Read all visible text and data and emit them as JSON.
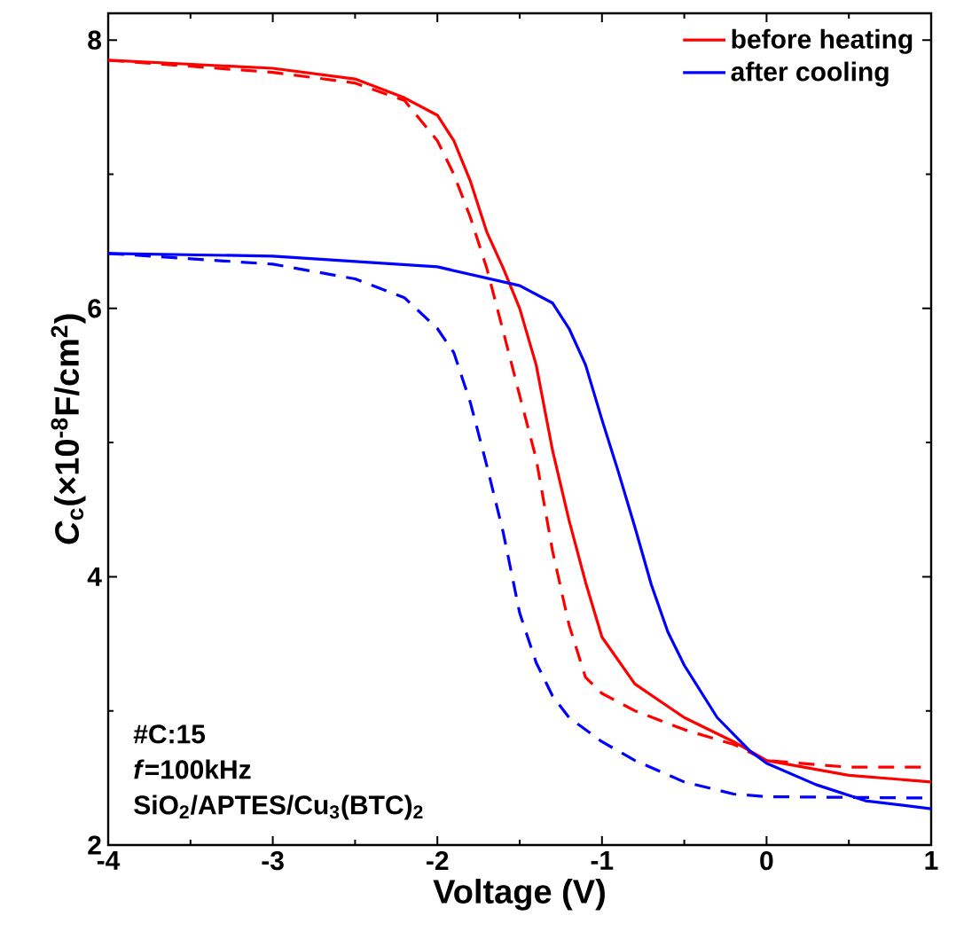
{
  "chart_data": {
    "type": "line",
    "xlabel": "Voltage (V)",
    "ylabel": "*C*$_{c}$(×10$^{-8}$F/cm$^{2}$)",
    "xlim": [
      -4,
      1
    ],
    "ylim": [
      2,
      8.2
    ],
    "xticks": [
      -4,
      -3,
      -2,
      -1,
      0,
      1
    ],
    "yticks": [
      2,
      4,
      6,
      8
    ],
    "grid": false,
    "legend": "top right",
    "marker": "none",
    "annotations": [
      "#C:15",
      "*f*=100kHz",
      "SiO$_{2}$/APTES/Cu$_{3}$(BTC)$_{2}$"
    ],
    "series": [
      {
        "name": "before heating",
        "color": "#ff0000",
        "line_style": "solid",
        "x": [
          -4,
          -3,
          -2.5,
          -2.2,
          -2.0,
          -1.9,
          -1.8,
          -1.7,
          -1.6,
          -1.5,
          -1.4,
          -1.3,
          -1.2,
          -1.1,
          -1.0,
          -0.8,
          -0.5,
          -0.2,
          0,
          0.5,
          1
        ],
        "values": [
          7.85,
          7.79,
          7.71,
          7.57,
          7.44,
          7.25,
          6.95,
          6.57,
          6.3,
          6.0,
          5.58,
          4.94,
          4.42,
          3.96,
          3.55,
          3.2,
          2.95,
          2.77,
          2.63,
          2.52,
          2.47
        ]
      },
      {
        "name": null,
        "color": "#ff0000",
        "line_style": "dashed",
        "x": [
          -4,
          -3,
          -2.5,
          -2.2,
          -2.0,
          -1.9,
          -1.8,
          -1.7,
          -1.6,
          -1.5,
          -1.4,
          -1.3,
          -1.2,
          -1.1,
          -1.0,
          -0.8,
          -0.5,
          -0.2,
          0,
          0.5,
          1
        ],
        "values": [
          7.85,
          7.76,
          7.68,
          7.55,
          7.25,
          7.0,
          6.68,
          6.3,
          5.83,
          5.35,
          4.88,
          4.19,
          3.64,
          3.25,
          3.13,
          3.0,
          2.86,
          2.75,
          2.63,
          2.58,
          2.58
        ]
      },
      {
        "name": "after cooling",
        "color": "#0000ff",
        "line_style": "solid",
        "x": [
          -4,
          -3,
          -2,
          -1.5,
          -1.3,
          -1.2,
          -1.1,
          -1.0,
          -0.9,
          -0.8,
          -0.7,
          -0.6,
          -0.5,
          -0.3,
          -0.1,
          0,
          0.3,
          0.6,
          1
        ],
        "values": [
          6.41,
          6.39,
          6.31,
          6.17,
          6.04,
          5.85,
          5.58,
          5.17,
          4.78,
          4.37,
          3.94,
          3.59,
          3.34,
          2.95,
          2.7,
          2.61,
          2.45,
          2.33,
          2.27
        ]
      },
      {
        "name": null,
        "color": "#0000ff",
        "line_style": "dashed",
        "x": [
          -4,
          -3,
          -2.5,
          -2.2,
          -2.0,
          -1.9,
          -1.8,
          -1.7,
          -1.6,
          -1.5,
          -1.4,
          -1.3,
          -1.2,
          -1.0,
          -0.8,
          -0.5,
          -0.2,
          0,
          1
        ],
        "values": [
          6.41,
          6.33,
          6.22,
          6.08,
          5.85,
          5.67,
          5.3,
          4.83,
          4.33,
          3.73,
          3.36,
          3.11,
          2.95,
          2.77,
          2.63,
          2.47,
          2.38,
          2.36,
          2.35
        ]
      }
    ]
  }
}
